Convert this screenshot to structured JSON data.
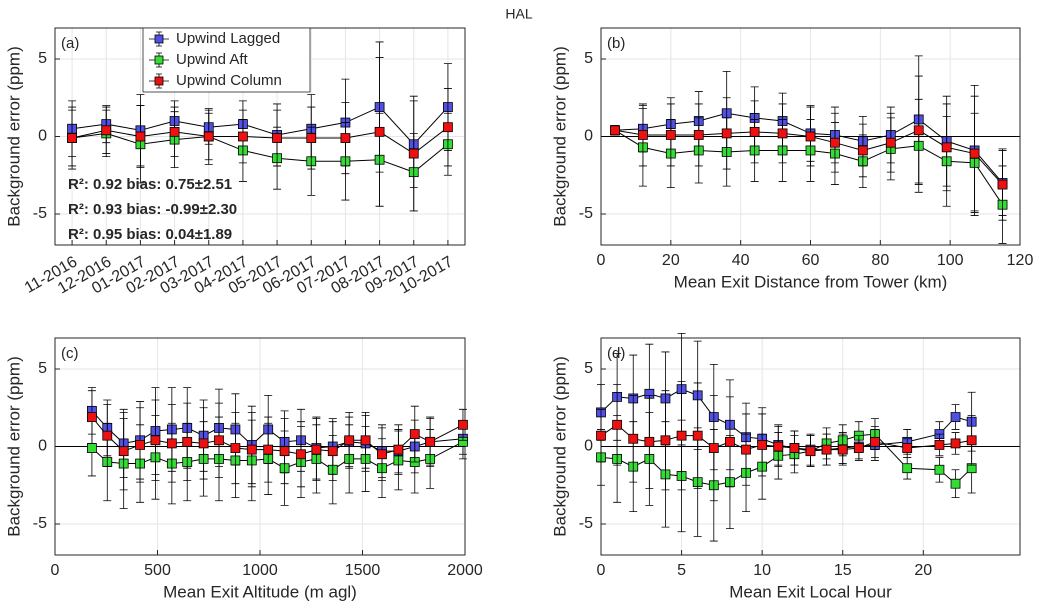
{
  "title": "HAL",
  "chart_data": [
    {
      "type": "line",
      "panel_label": "(a)",
      "ylabel": "Background error (ppm)",
      "categories": [
        "11-2016",
        "12-2016",
        "01-2017",
        "02-2017",
        "03-2017",
        "04-2017",
        "05-2017",
        "06-2017",
        "07-2017",
        "08-2017",
        "09-2017",
        "10-2017"
      ],
      "ylim": [
        -7,
        7
      ],
      "yticks": [
        -5,
        0,
        5
      ],
      "grid": true,
      "zero_line": false,
      "legend": "upper left",
      "series": [
        {
          "name": "Upwind Lagged",
          "color": "#5050e6",
          "values": [
            0.5,
            0.8,
            0.4,
            1.0,
            0.6,
            0.8,
            0.1,
            0.5,
            0.9,
            1.9,
            -0.5,
            1.9
          ],
          "errors": [
            1.8,
            1.2,
            2.3,
            1.3,
            1.1,
            1.5,
            2.0,
            2.2,
            2.8,
            4.2,
            2.8,
            2.8
          ]
        },
        {
          "name": "Upwind Aft",
          "color": "#33dd33",
          "values": [
            -0.1,
            0.2,
            -0.5,
            -0.2,
            0.0,
            -0.9,
            -1.4,
            -1.6,
            -1.6,
            -1.5,
            -2.3,
            -0.5
          ],
          "errors": [
            2.0,
            1.5,
            2.5,
            1.8,
            1.8,
            2.0,
            2.0,
            2.2,
            2.5,
            3.0,
            2.5,
            2.0
          ]
        },
        {
          "name": "Upwind Column",
          "color": "#ee1111",
          "values": [
            -0.1,
            0.4,
            0.0,
            0.3,
            0.0,
            0.0,
            -0.1,
            -0.1,
            -0.1,
            0.3,
            -1.1,
            0.6
          ],
          "errors": [
            1.8,
            1.5,
            2.0,
            1.6,
            1.5,
            1.7,
            1.8,
            2.0,
            2.3,
            4.8,
            3.7,
            2.5
          ]
        }
      ],
      "annotations": [
        {
          "text": "R²: 0.92 bias: 0.75±2.51",
          "color": "#5a5aee"
        },
        {
          "text": "R²: 0.93 bias: -0.99±2.30",
          "color": "#138a13"
        },
        {
          "text": "R²: 0.95 bias: 0.04±1.89",
          "color": "#ff0000"
        }
      ]
    },
    {
      "type": "line",
      "panel_label": "(b)",
      "ylabel": "Background error (ppm)",
      "xlabel": "Mean Exit Distance from Tower (km)",
      "x": [
        4,
        12,
        20,
        28,
        36,
        44,
        52,
        60,
        67,
        75,
        83,
        91,
        99,
        107,
        115
      ],
      "xlim": [
        0,
        120
      ],
      "xticks": [
        0,
        20,
        40,
        60,
        80,
        100,
        120
      ],
      "ylim": [
        -7,
        7
      ],
      "yticks": [
        -5,
        0,
        5
      ],
      "grid": true,
      "zero_line": true,
      "series": [
        {
          "color": "#5050e6",
          "values": [
            0.4,
            0.5,
            0.8,
            1.0,
            1.5,
            1.2,
            1.0,
            0.2,
            0.1,
            -0.3,
            0.1,
            1.1,
            -0.3,
            -0.9,
            -3.0
          ],
          "errors": [
            0.3,
            1.5,
            1.7,
            1.9,
            2.7,
            2.0,
            1.8,
            1.8,
            1.8,
            1.6,
            1.8,
            4.1,
            2.9,
            4.2,
            2.1
          ]
        },
        {
          "color": "#33dd33",
          "values": [
            0.4,
            -0.7,
            -1.1,
            -0.9,
            -1.0,
            -0.9,
            -0.9,
            -0.9,
            -1.1,
            -1.6,
            -0.8,
            -0.6,
            -1.6,
            -1.7,
            -4.4
          ],
          "errors": [
            0.3,
            2.5,
            2.2,
            2.1,
            2.2,
            2.0,
            2.0,
            2.0,
            2.0,
            1.7,
            2.0,
            3.0,
            2.9,
            3.2,
            2.5
          ]
        },
        {
          "color": "#ee1111",
          "values": [
            0.4,
            0.1,
            0.1,
            0.1,
            0.2,
            0.3,
            0.2,
            0.0,
            -0.4,
            -0.9,
            -0.4,
            0.4,
            -0.7,
            -1.1,
            -3.1
          ],
          "errors": [
            0.3,
            2.0,
            2.0,
            2.0,
            2.3,
            2.0,
            1.9,
            1.9,
            1.9,
            1.7,
            1.9,
            3.5,
            2.8,
            3.7,
            2.3
          ]
        }
      ]
    },
    {
      "type": "line",
      "panel_label": "(c)",
      "ylabel": "Background error (ppm)",
      "xlabel": "Mean Exit Altitude (m agl)",
      "x": [
        180,
        255,
        335,
        415,
        490,
        570,
        645,
        725,
        800,
        880,
        960,
        1040,
        1120,
        1200,
        1275,
        1355,
        1435,
        1515,
        1595,
        1675,
        1755,
        1830,
        1990
      ],
      "xlim": [
        0,
        2000
      ],
      "xticks": [
        0,
        500,
        1000,
        1500,
        2000
      ],
      "ylim": [
        -7,
        7
      ],
      "yticks": [
        -5,
        0,
        5
      ],
      "grid": true,
      "zero_line": true,
      "series": [
        {
          "color": "#5050e6",
          "values": [
            2.3,
            1.2,
            0.2,
            0.4,
            1.0,
            1.1,
            1.2,
            0.7,
            1.2,
            1.1,
            0.1,
            1.1,
            0.3,
            0.4,
            -0.1,
            0.0,
            0.3,
            0.2,
            -0.3,
            -0.3,
            0.0,
            0.3,
            0.5
          ],
          "errors": [
            1.5,
            1.8,
            2.2,
            2.5,
            2.8,
            2.7,
            2.6,
            2.3,
            2.5,
            2.3,
            2.5,
            2.2,
            2.0,
            2.0,
            2.0,
            1.8,
            1.6,
            1.8,
            1.7,
            1.4,
            1.7,
            1.5,
            1.0
          ]
        },
        {
          "color": "#33dd33",
          "values": [
            -0.1,
            -1.0,
            -1.1,
            -1.1,
            -0.7,
            -1.1,
            -1.0,
            -0.8,
            -0.8,
            -0.9,
            -0.9,
            -0.8,
            -1.4,
            -1.0,
            -0.8,
            -1.5,
            -0.8,
            -0.8,
            -1.4,
            -0.9,
            -1.0,
            -0.8,
            0.3
          ],
          "errors": [
            1.8,
            2.5,
            2.9,
            2.5,
            2.7,
            2.6,
            2.5,
            2.4,
            2.7,
            2.4,
            2.6,
            2.3,
            2.4,
            2.3,
            2.2,
            2.2,
            2.2,
            2.1,
            1.9,
            1.9,
            2.0,
            1.9,
            1.1
          ]
        },
        {
          "color": "#ee1111",
          "values": [
            1.9,
            0.7,
            -0.3,
            0.1,
            0.4,
            0.2,
            0.3,
            0.2,
            0.4,
            -0.1,
            -0.2,
            -0.2,
            -0.3,
            -0.5,
            -0.2,
            -0.3,
            0.4,
            0.4,
            -0.5,
            -0.2,
            0.8,
            0.3,
            1.4
          ],
          "errors": [
            1.7,
            2.0,
            2.5,
            2.4,
            2.6,
            2.5,
            2.5,
            2.3,
            2.4,
            2.3,
            2.4,
            2.1,
            2.1,
            2.1,
            2.0,
            1.9,
            1.8,
            1.8,
            1.7,
            1.6,
            1.8,
            1.6,
            1.0
          ]
        }
      ]
    },
    {
      "type": "line",
      "panel_label": "(d)",
      "ylabel": "Background error (ppm)",
      "xlabel": "Mean Exit Local Hour",
      "x": [
        0,
        1,
        2,
        3,
        4,
        5,
        6,
        7,
        8,
        9,
        10,
        11,
        12,
        13,
        14,
        15,
        16,
        17,
        19,
        21,
        22,
        23
      ],
      "xlim": [
        0,
        26
      ],
      "xticks": [
        0,
        5,
        10,
        15,
        20
      ],
      "ylim": [
        -7,
        7
      ],
      "yticks": [
        -5,
        0,
        5
      ],
      "grid": true,
      "zero_line": true,
      "series": [
        {
          "color": "#5050e6",
          "values": [
            2.2,
            3.2,
            3.1,
            3.4,
            3.1,
            3.7,
            3.3,
            1.9,
            1.4,
            0.6,
            0.5,
            0.1,
            -0.1,
            -0.2,
            -0.2,
            -0.1,
            0.0,
            0.1,
            0.3,
            0.8,
            1.9,
            1.6
          ],
          "errors": [
            1.8,
            2.8,
            2.8,
            3.2,
            3.0,
            3.6,
            3.5,
            3.4,
            2.9,
            2.2,
            2.0,
            1.3,
            1.1,
            1.0,
            1.0,
            1.0,
            0.8,
            1.0,
            0.8,
            0.8,
            0.8,
            1.9
          ]
        },
        {
          "color": "#33dd33",
          "values": [
            -0.7,
            -0.8,
            -1.3,
            -0.8,
            -1.8,
            -1.9,
            -2.3,
            -2.5,
            -2.3,
            -1.7,
            -1.3,
            -0.6,
            -0.5,
            -0.3,
            0.2,
            0.4,
            0.7,
            0.8,
            -1.4,
            -1.5,
            -2.4,
            -1.4
          ],
          "errors": [
            1.8,
            2.8,
            2.9,
            3.0,
            3.4,
            3.6,
            3.5,
            3.6,
            3.0,
            2.5,
            2.1,
            1.5,
            1.2,
            1.0,
            1.0,
            1.0,
            0.9,
            1.0,
            0.7,
            0.8,
            0.9,
            1.6
          ]
        },
        {
          "color": "#ee1111",
          "values": [
            0.7,
            1.4,
            0.5,
            0.3,
            0.4,
            0.7,
            0.7,
            -0.1,
            0.3,
            -0.2,
            0.1,
            0.0,
            -0.1,
            -0.3,
            -0.2,
            -0.2,
            -0.1,
            0.3,
            -0.1,
            0.1,
            0.2,
            0.4
          ],
          "errors": [
            1.7,
            2.6,
            2.8,
            3.0,
            3.2,
            3.5,
            3.4,
            3.4,
            2.9,
            2.3,
            2.0,
            1.3,
            1.1,
            1.0,
            1.0,
            1.0,
            0.8,
            1.0,
            0.6,
            0.7,
            0.7,
            1.6
          ]
        }
      ]
    }
  ]
}
